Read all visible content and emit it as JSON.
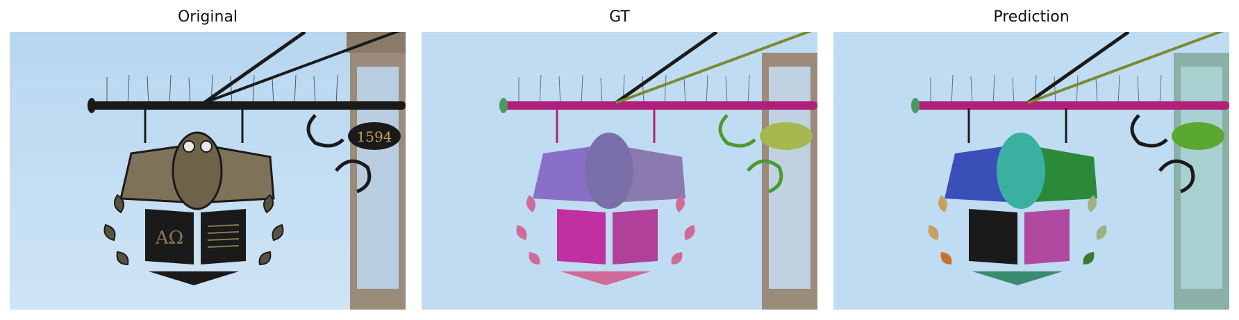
{
  "figure": {
    "panels": [
      {
        "title": "Original",
        "icon": "owl-sign-photo"
      },
      {
        "title": "GT",
        "icon": "owl-sign-ground-truth-mask"
      },
      {
        "title": "Prediction",
        "icon": "owl-sign-prediction-mask"
      }
    ],
    "sign_year": "1594",
    "book_letters": "AΩ"
  },
  "colors": {
    "sky": "#bfdcf2",
    "metal": "#1a1a1a",
    "gold": "#8a7a52",
    "gt_bar": "#b0207a",
    "gt_owl": "#8a6fc8",
    "gt_book": "#c030a0",
    "gt_wreath": "#d06a98",
    "gt_scroll": "#4a9a30",
    "pred_owl_body": "#3ab0a0",
    "pred_wing_left": "#3a50b8",
    "pred_wing_right": "#2a8a3a",
    "pred_book": "#b048a0",
    "pred_plate": "#5aa830"
  }
}
